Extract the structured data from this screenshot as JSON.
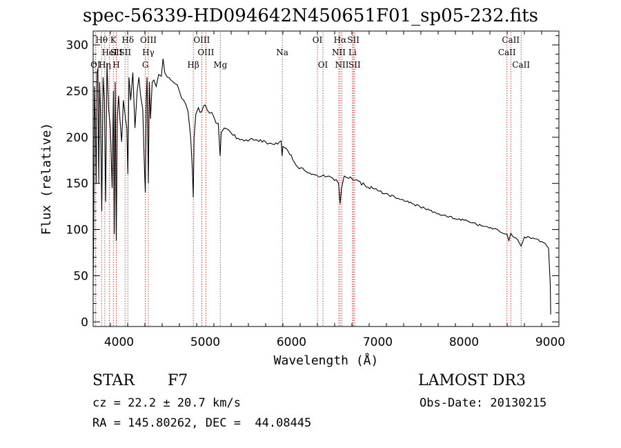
{
  "chart_data": {
    "type": "line",
    "title": "spec-56339-HD094642N450651F01_sp05-232.fits",
    "xlabel": "Wavelength (Å)",
    "ylabel": "Flux (relative)",
    "xlim": [
      3700,
      9100
    ],
    "ylim": [
      -5,
      315
    ],
    "xticks": [
      4000,
      5000,
      6000,
      7000,
      8000,
      9000
    ],
    "yticks": [
      0,
      50,
      100,
      150,
      200,
      250,
      300
    ],
    "series": [
      {
        "name": "spectrum",
        "x": [
          3700,
          3705,
          3715,
          3725,
          3735,
          3745,
          3755,
          3765,
          3775,
          3785,
          3800,
          3815,
          3830,
          3845,
          3860,
          3880,
          3900,
          3920,
          3935,
          3945,
          3955,
          3968,
          3980,
          3995,
          4010,
          4030,
          4050,
          4075,
          4090,
          4102,
          4115,
          4135,
          4160,
          4185,
          4210,
          4230,
          4250,
          4275,
          4295,
          4305,
          4315,
          4325,
          4340,
          4352,
          4365,
          4385,
          4405,
          4430,
          4460,
          4490,
          4510,
          4530,
          4560,
          4600,
          4650,
          4700,
          4750,
          4800,
          4830,
          4850,
          4861,
          4870,
          4890,
          4920,
          4960,
          5000,
          5050,
          5100,
          5150,
          5172,
          5185,
          5220,
          5270,
          5320,
          5380,
          5450,
          5520,
          5600,
          5700,
          5800,
          5880,
          5890,
          5900,
          5960,
          6050,
          6150,
          6250,
          6350,
          6450,
          6520,
          6545,
          6563,
          6580,
          6610,
          6700,
          6850,
          7000,
          7200,
          7400,
          7600,
          7800,
          8000,
          8200,
          8400,
          8498,
          8520,
          8542,
          8570,
          8600,
          8662,
          8700,
          8800,
          8900,
          8940,
          8980,
          9000,
          9005
        ],
        "y": [
          40,
          85,
          255,
          215,
          150,
          270,
          275,
          150,
          260,
          230,
          120,
          265,
          240,
          130,
          280,
          230,
          210,
          145,
          250,
          95,
          260,
          88,
          220,
          245,
          220,
          195,
          240,
          220,
          210,
          160,
          265,
          240,
          270,
          210,
          250,
          265,
          245,
          230,
          165,
          140,
          240,
          265,
          150,
          260,
          220,
          260,
          262,
          255,
          268,
          266,
          285,
          270,
          265,
          262,
          258,
          250,
          240,
          228,
          200,
          165,
          135,
          200,
          225,
          232,
          228,
          235,
          226,
          222,
          215,
          180,
          205,
          210,
          208,
          202,
          199,
          196,
          198,
          197,
          195,
          192,
          196,
          180,
          190,
          185,
          170,
          164,
          160,
          158,
          157,
          154,
          150,
          128,
          145,
          158,
          155,
          148,
          142,
          135,
          128,
          121,
          114,
          110,
          104,
          99,
          95,
          88,
          96,
          92,
          91,
          82,
          92,
          91,
          87,
          85,
          80,
          40,
          8
        ]
      }
    ],
    "annotations": [
      {
        "label": "OI",
        "x": 3727
      },
      {
        "label": "Hθ",
        "x": 3798
      },
      {
        "label": "Hη",
        "x": 3835
      },
      {
        "label": "HeI",
        "x": 3889
      },
      {
        "label": "K",
        "x": 3934
      },
      {
        "label": "SII",
        "x": 3970
      },
      {
        "label": "H",
        "x": 3968
      },
      {
        "label": "Hδ",
        "x": 4102
      },
      {
        "label": "SII",
        "x": 4070
      },
      {
        "label": "OIII",
        "x": 4340
      },
      {
        "label": "Hγ",
        "x": 4340
      },
      {
        "label": "G",
        "x": 4305
      },
      {
        "label": "Hβ",
        "x": 4861
      },
      {
        "label": "OIII",
        "x": 4959
      },
      {
        "label": "OIII",
        "x": 5007
      },
      {
        "label": "Mg",
        "x": 5175
      },
      {
        "label": "Na",
        "x": 5893
      },
      {
        "label": "OI",
        "x": 6300
      },
      {
        "label": "OI",
        "x": 6364
      },
      {
        "label": "Hα",
        "x": 6563
      },
      {
        "label": "NII",
        "x": 6548
      },
      {
        "label": "NII",
        "x": 6584
      },
      {
        "label": "SII",
        "x": 6717
      },
      {
        "label": "Li",
        "x": 6707
      },
      {
        "label": "SII",
        "x": 6731
      },
      {
        "label": "CaII",
        "x": 8542
      },
      {
        "label": "CaII",
        "x": 8498
      },
      {
        "label": "CaII",
        "x": 8662
      }
    ]
  },
  "info": {
    "object_type": "STAR",
    "subclass": "F7",
    "survey": "LAMOST DR3",
    "cz": "cz = 22.2 ± 20.7 km/s",
    "obs_date": "Obs-Date: 20130215",
    "coords": "RA = 145.80262, DEC =  44.08445"
  }
}
